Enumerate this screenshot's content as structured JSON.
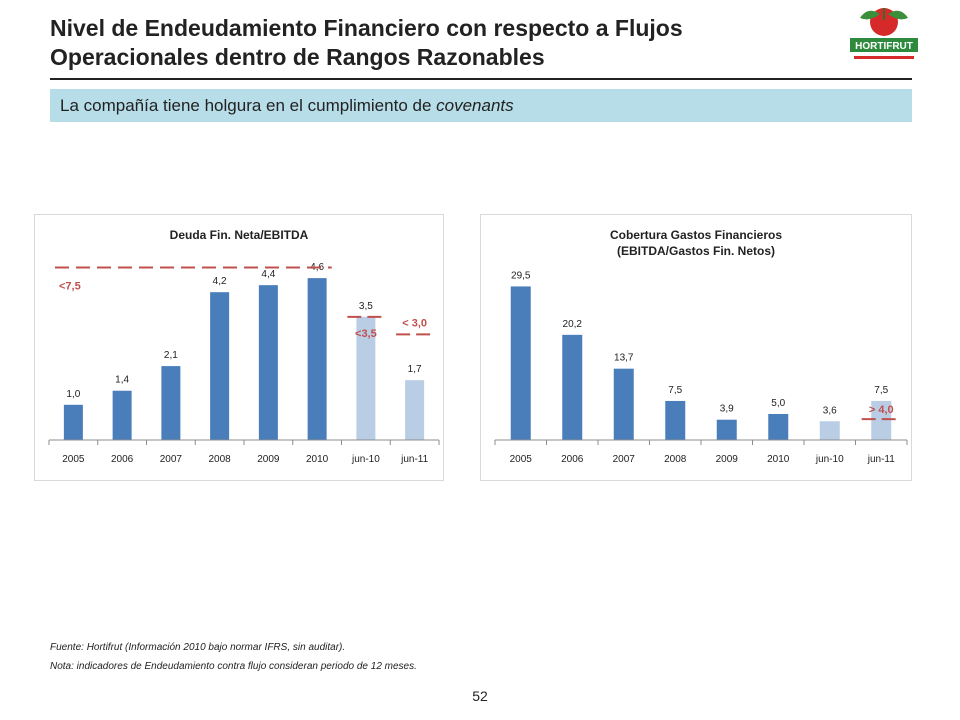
{
  "header": {
    "title_line1": "Nivel de Endeudamiento Financiero con respecto a Flujos",
    "title_line2": "Operacionales dentro de Rangos Razonables",
    "logo_text": "HORTIFRUT"
  },
  "banner": {
    "text_plain": "La compañía tiene holgura en el cumplimiento de ",
    "text_italic": "covenants"
  },
  "colors": {
    "bar_dark": "#4a7ebb",
    "bar_light": "#b9cde5",
    "covenant_red": "#c0504d",
    "banner_bg": "#b7dde8"
  },
  "chart_data": [
    {
      "type": "bar",
      "title_lines": [
        "Deuda Fin. Neta/EBITDA"
      ],
      "categories": [
        "2005",
        "2006",
        "2007",
        "2008",
        "2009",
        "2010",
        "jun-10",
        "jun-11"
      ],
      "values": [
        1.0,
        1.4,
        2.1,
        4.2,
        4.4,
        4.6,
        3.5,
        1.7
      ],
      "value_labels": [
        "1,0",
        "1,4",
        "2,1",
        "4,2",
        "4,4",
        "4,6",
        "3,5",
        "1,7"
      ],
      "bar_shades": [
        "dark",
        "dark",
        "dark",
        "dark",
        "dark",
        "dark",
        "light",
        "light"
      ],
      "ylim": [
        0,
        5.2
      ],
      "grid": false,
      "covenants": [
        {
          "label": "<7,5",
          "value": 4.9,
          "from_category": 0,
          "to_category": 5
        },
        {
          "label": "<3,5",
          "value": 3.5,
          "from_category": 6,
          "to_category": 6
        },
        {
          "label": "< 3,0",
          "value": 3.0,
          "from_category": 7,
          "to_category": 7
        }
      ]
    },
    {
      "type": "bar",
      "title_lines": [
        "Cobertura Gastos Financieros",
        "(EBITDA/Gastos Fin. Netos)"
      ],
      "categories": [
        "2005",
        "2006",
        "2007",
        "2008",
        "2009",
        "2010",
        "jun-10",
        "jun-11"
      ],
      "values": [
        29.5,
        20.2,
        13.7,
        7.5,
        3.9,
        5.0,
        3.6,
        7.5
      ],
      "value_labels": [
        "29,5",
        "20,2",
        "13,7",
        "7,5",
        "3,9",
        "5,0",
        "3,6",
        "7,5"
      ],
      "bar_shades": [
        "dark",
        "dark",
        "dark",
        "dark",
        "dark",
        "dark",
        "light",
        "light"
      ],
      "ylim": [
        0,
        34
      ],
      "grid": false,
      "covenants": [
        {
          "label": "> 4,0",
          "value": 4.0,
          "from_category": 7,
          "to_category": 7
        }
      ]
    }
  ],
  "footnotes": {
    "source": "Fuente: Hortifrut (Información 2010 bajo normar IFRS, sin auditar).",
    "note": "Nota: indicadores de Endeudamiento contra flujo consideran periodo de 12 meses."
  },
  "page_number": "52"
}
